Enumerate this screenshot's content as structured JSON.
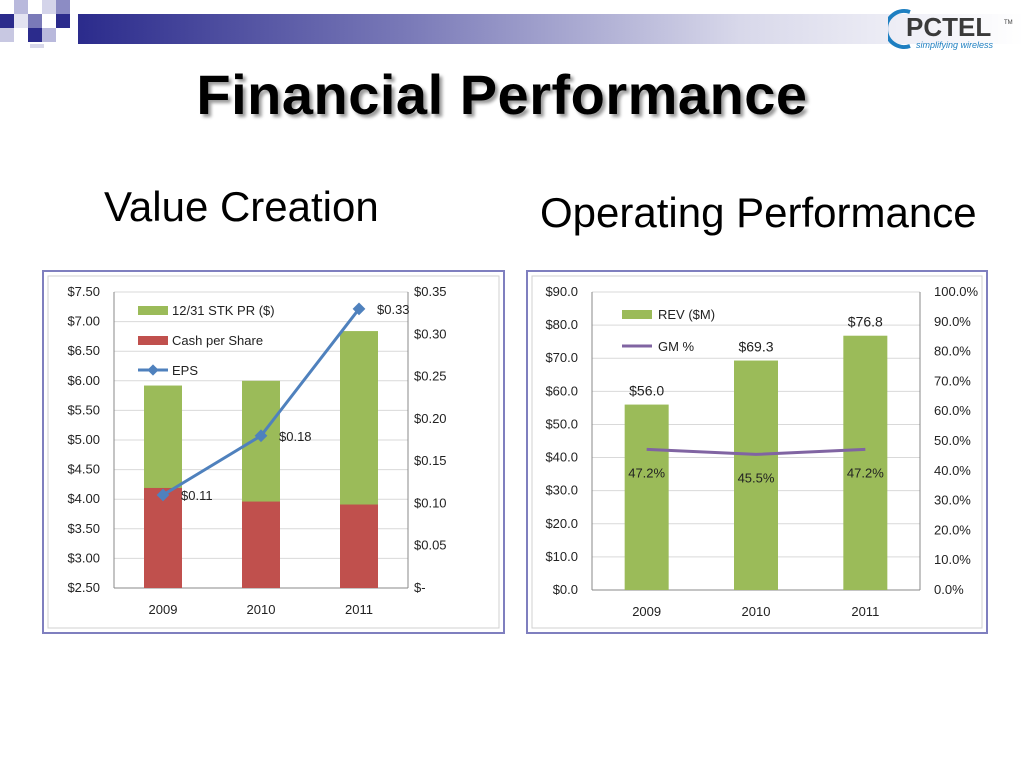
{
  "slide": {
    "title": "Financial Performance",
    "left_subtitle": "Value Creation",
    "right_subtitle": "Operating Performance"
  },
  "logo": {
    "name": "PCTEL",
    "tm": "TM",
    "tagline": "simplifying wireless"
  },
  "colors": {
    "green": "#9bbb59",
    "red": "#c0504d",
    "blue_line": "#4f81bd",
    "purple_line": "#8064a2",
    "frame": "#7f7fbf",
    "topbar_dark": "#2b2b8c"
  },
  "chart_data": [
    {
      "type": "bar",
      "stacked": true,
      "categories": [
        "2009",
        "2010",
        "2011"
      ],
      "series": [
        {
          "name": "12/31 STK PR ($)",
          "values": [
            5.92,
            6.0,
            6.84
          ],
          "color": "#9bbb59"
        },
        {
          "name": "Cash per Share",
          "values": [
            4.19,
            3.96,
            3.91
          ],
          "color": "#c0504d"
        }
      ],
      "line_series": [
        {
          "name": "EPS",
          "values": [
            0.11,
            0.18,
            0.33
          ],
          "labels": [
            "$0.11",
            "$0.18",
            "$0.33"
          ],
          "color": "#4f81bd",
          "axis": "right"
        }
      ],
      "ylim": [
        2.5,
        7.5
      ],
      "y2lim": [
        0,
        0.35
      ],
      "y_ticks": [
        "$7.50",
        "$7.00",
        "$6.50",
        "$6.00",
        "$5.50",
        "$5.00",
        "$4.50",
        "$4.00",
        "$3.50",
        "$3.00",
        "$2.50"
      ],
      "y2_ticks": [
        "$0.35",
        "$0.30",
        "$0.25",
        "$0.20",
        "$0.15",
        "$0.10",
        "$0.05",
        "$-"
      ],
      "grid": true,
      "legend": "top-left"
    },
    {
      "type": "bar",
      "categories": [
        "2009",
        "2010",
        "2011"
      ],
      "series": [
        {
          "name": "REV ($M)",
          "values": [
            56.0,
            69.3,
            76.8
          ],
          "labels": [
            "$56.0",
            "$69.3",
            "$76.8"
          ],
          "color": "#9bbb59"
        }
      ],
      "line_series": [
        {
          "name": "GM %",
          "values": [
            47.2,
            45.5,
            47.2
          ],
          "labels": [
            "47.2%",
            "45.5%",
            "47.2%"
          ],
          "color": "#8064a2",
          "axis": "right"
        }
      ],
      "ylim": [
        0,
        90
      ],
      "y2lim": [
        0,
        100
      ],
      "y_ticks": [
        "$90.0",
        "$80.0",
        "$70.0",
        "$60.0",
        "$50.0",
        "$40.0",
        "$30.0",
        "$20.0",
        "$10.0",
        "$0.0"
      ],
      "y2_ticks": [
        "100.0%",
        "90.0%",
        "80.0%",
        "70.0%",
        "60.0%",
        "50.0%",
        "40.0%",
        "30.0%",
        "20.0%",
        "10.0%",
        "0.0%"
      ],
      "grid": true,
      "legend": "top-left"
    }
  ]
}
